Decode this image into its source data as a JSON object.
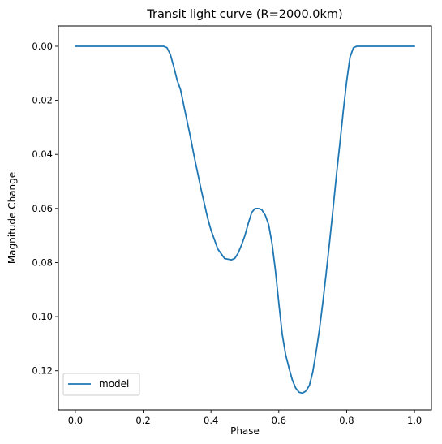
{
  "chart_data": {
    "type": "line",
    "title": "Transit light curve (R=2000.0km)",
    "xlabel": "Phase",
    "ylabel": "Magnitude Change",
    "xlim": [
      -0.05,
      1.05
    ],
    "ylim": [
      0.1345,
      -0.0075
    ],
    "y_inverted": true,
    "grid": false,
    "legend": {
      "position": "lower-left",
      "entries": [
        "model"
      ]
    },
    "xticks": [
      0.0,
      0.2,
      0.4,
      0.6,
      0.8,
      1.0
    ],
    "xtick_labels": [
      "0.0",
      "0.2",
      "0.4",
      "0.6",
      "0.8",
      "1.0"
    ],
    "yticks": [
      0.0,
      0.02,
      0.04,
      0.06,
      0.08,
      0.1,
      0.12
    ],
    "ytick_labels": [
      "0.00",
      "0.02",
      "0.04",
      "0.06",
      "0.08",
      "0.10",
      "0.12"
    ],
    "series": [
      {
        "name": "model",
        "color": "#1f77b4",
        "x": [
          0.0,
          0.1,
          0.2,
          0.26,
          0.27,
          0.28,
          0.29,
          0.3,
          0.31,
          0.32,
          0.33,
          0.34,
          0.35,
          0.36,
          0.37,
          0.38,
          0.39,
          0.4,
          0.42,
          0.44,
          0.46,
          0.47,
          0.48,
          0.49,
          0.5,
          0.51,
          0.52,
          0.53,
          0.54,
          0.55,
          0.56,
          0.57,
          0.58,
          0.59,
          0.6,
          0.61,
          0.62,
          0.63,
          0.64,
          0.65,
          0.66,
          0.67,
          0.68,
          0.69,
          0.7,
          0.71,
          0.72,
          0.73,
          0.74,
          0.75,
          0.76,
          0.77,
          0.78,
          0.79,
          0.8,
          0.81,
          0.82,
          0.83,
          0.84,
          0.85,
          0.86,
          0.87,
          0.88,
          0.9,
          1.0
        ],
        "y": [
          0.0,
          0.0,
          0.0,
          0.0,
          0.0005,
          0.003,
          0.0075,
          0.0125,
          0.016,
          0.022,
          0.028,
          0.034,
          0.0405,
          0.0465,
          0.0525,
          0.058,
          0.0635,
          0.068,
          0.075,
          0.0785,
          0.079,
          0.0785,
          0.0765,
          0.0735,
          0.07,
          0.0655,
          0.0615,
          0.06,
          0.06,
          0.0605,
          0.0625,
          0.066,
          0.073,
          0.083,
          0.095,
          0.1065,
          0.114,
          0.119,
          0.1235,
          0.1265,
          0.128,
          0.1283,
          0.1275,
          0.1255,
          0.1205,
          0.113,
          0.1045,
          0.0945,
          0.0835,
          0.072,
          0.06,
          0.0475,
          0.036,
          0.024,
          0.013,
          0.004,
          0.0005,
          0.0,
          0.0,
          0.0,
          0.0,
          0.0,
          0.0,
          0.0,
          0.0
        ]
      }
    ]
  }
}
